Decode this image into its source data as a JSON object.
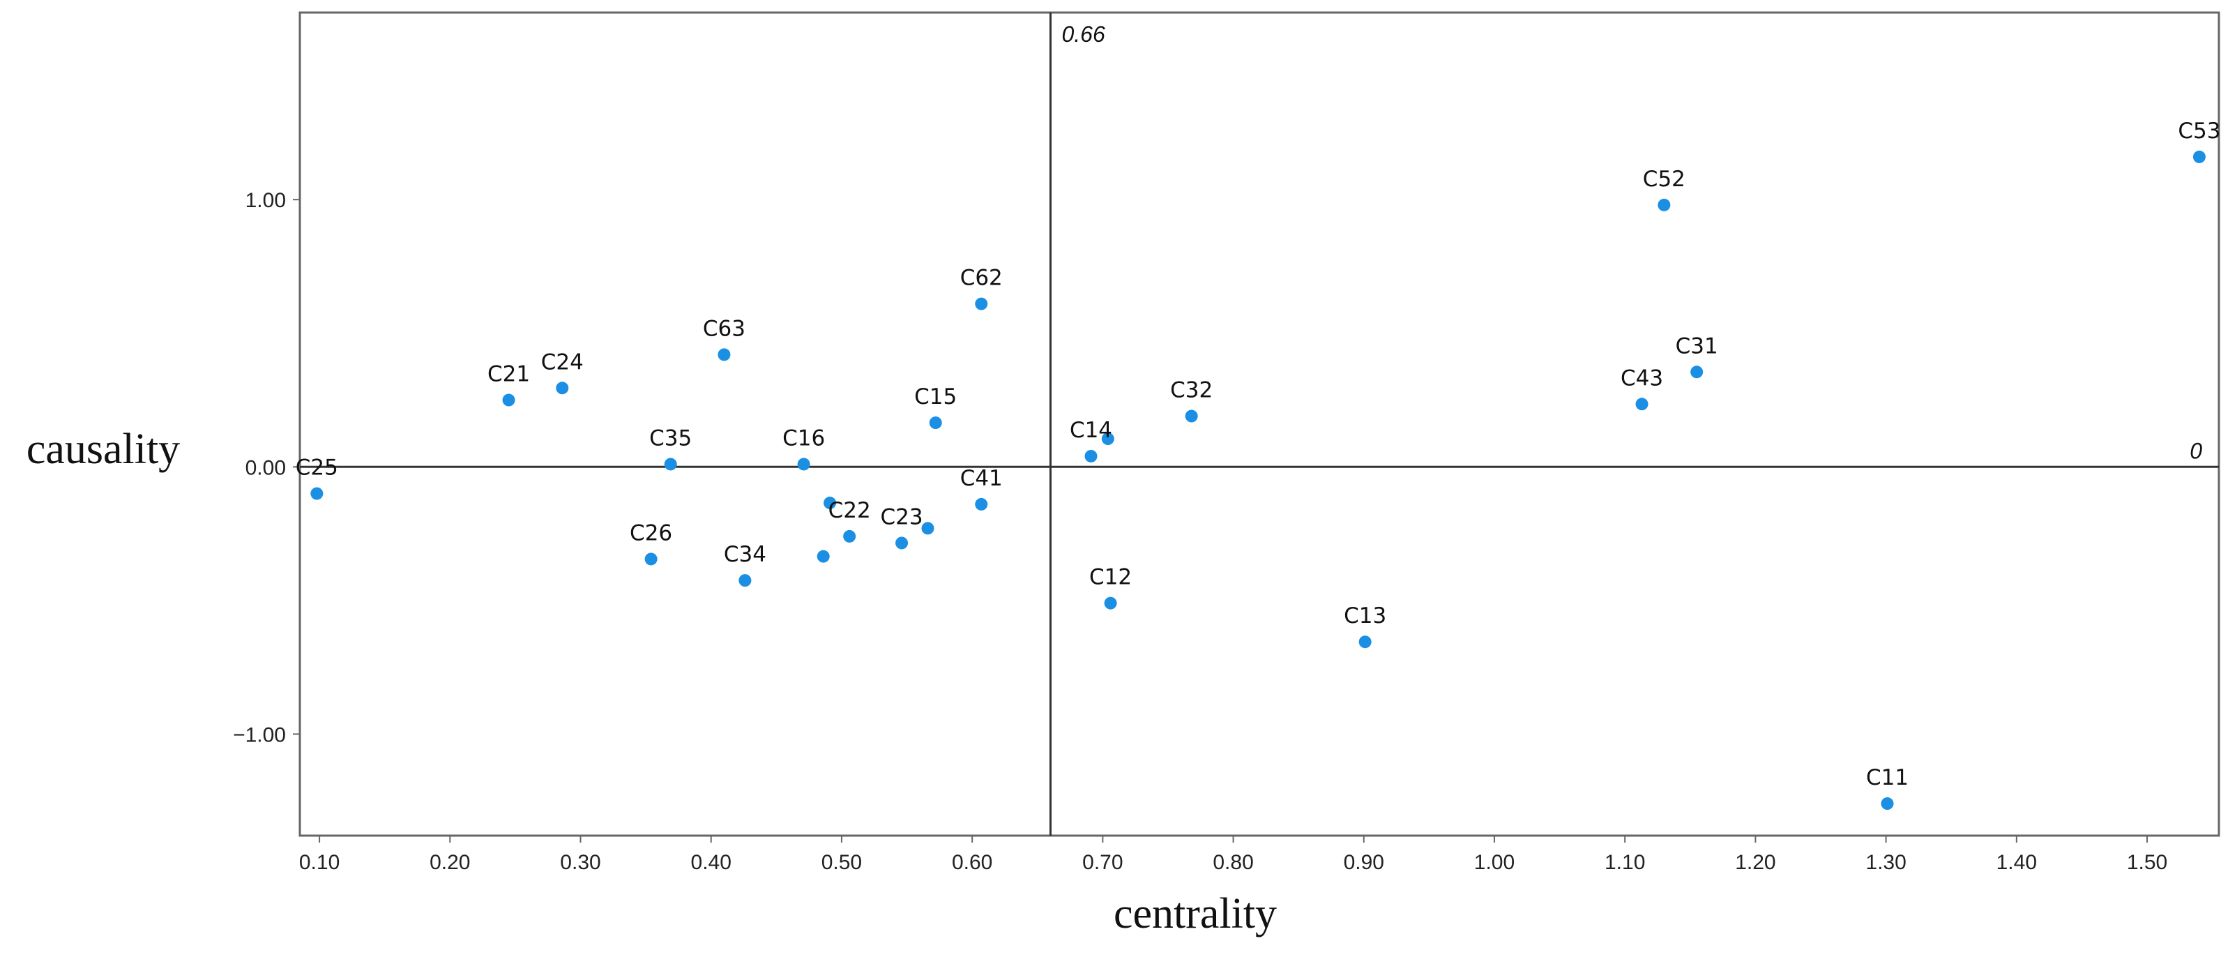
{
  "chart_data": {
    "type": "scatter",
    "xlabel": "centrality",
    "ylabel": "causality",
    "xlim": [
      0.085,
      1.555
    ],
    "ylim": [
      -1.38,
      1.7
    ],
    "x_ticks": [
      0.1,
      0.2,
      0.3,
      0.4,
      0.5,
      0.6,
      0.7,
      0.8,
      0.9,
      1.0,
      1.1,
      1.2,
      1.3,
      1.4,
      1.5
    ],
    "x_tick_labels": [
      "0.10",
      "0.20",
      "0.30",
      "0.40",
      "0.50",
      "0.60",
      "0.70",
      "0.80",
      "0.90",
      "1.00",
      "1.10",
      "1.20",
      "1.30",
      "1.40",
      "1.50"
    ],
    "y_ticks": [
      1.0,
      0.0,
      -1.0
    ],
    "y_tick_labels": [
      "1.00",
      "0.00",
      "−1.00"
    ],
    "reference_lines": {
      "vertical": {
        "value": 0.66,
        "label": "0.66"
      },
      "horizontal": {
        "value": 0,
        "label": "0"
      }
    },
    "marker_color": "#1a8fe3",
    "points": [
      {
        "name": "C53",
        "x": 1.54,
        "y": 1.16
      },
      {
        "name": "C52",
        "x": 1.13,
        "y": 0.98
      },
      {
        "name": "C62",
        "x": 0.607,
        "y": 0.61
      },
      {
        "name": "C63",
        "x": 0.41,
        "y": 0.42
      },
      {
        "name": "C24",
        "x": 0.286,
        "y": 0.295
      },
      {
        "name": "C21",
        "x": 0.245,
        "y": 0.25
      },
      {
        "name": "C31",
        "x": 1.155,
        "y": 0.355
      },
      {
        "name": "C43",
        "x": 1.113,
        "y": 0.235
      },
      {
        "name": "C32",
        "x": 0.768,
        "y": 0.19
      },
      {
        "name": "C15",
        "x": 0.572,
        "y": 0.165
      },
      {
        "name": "C14",
        "x": 0.691,
        "y": 0.04
      },
      {
        "name": "",
        "x": 0.704,
        "y": 0.105
      },
      {
        "name": "C35",
        "x": 0.369,
        "y": 0.01
      },
      {
        "name": "C16",
        "x": 0.471,
        "y": 0.01
      },
      {
        "name": "C25",
        "x": 0.098,
        "y": -0.1
      },
      {
        "name": "C41",
        "x": 0.607,
        "y": -0.14
      },
      {
        "name": "",
        "x": 0.491,
        "y": -0.135
      },
      {
        "name": "C22",
        "x": 0.506,
        "y": -0.26
      },
      {
        "name": "C23",
        "x": 0.546,
        "y": -0.285
      },
      {
        "name": "",
        "x": 0.566,
        "y": -0.23
      },
      {
        "name": "",
        "x": 0.486,
        "y": -0.335
      },
      {
        "name": "C26",
        "x": 0.354,
        "y": -0.345
      },
      {
        "name": "C34",
        "x": 0.426,
        "y": -0.425
      },
      {
        "name": "C12",
        "x": 0.706,
        "y": -0.51
      },
      {
        "name": "C13",
        "x": 0.901,
        "y": -0.655
      },
      {
        "name": "C11",
        "x": 1.301,
        "y": -1.26
      }
    ]
  }
}
